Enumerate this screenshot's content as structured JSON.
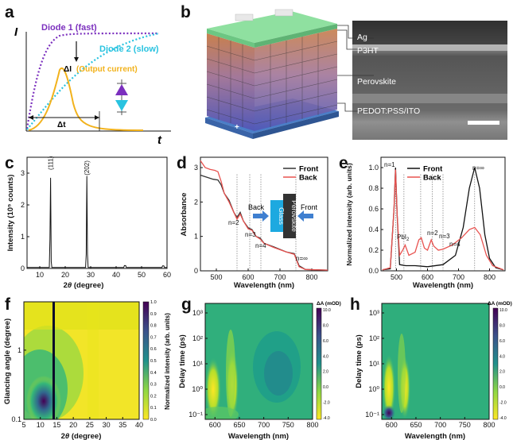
{
  "panels": {
    "a": {
      "label": "a",
      "y_axis": "I",
      "x_axis": "t",
      "diode1": "Diode 1 (fast)",
      "diode2": "Diode 2 (slow)",
      "delta_i": "ΔI",
      "output": "(Output current)",
      "delta_t": "Δt",
      "colors": {
        "diode1": "#7b2fbe",
        "diode2": "#29c3e0",
        "output": "#f2b21c"
      }
    },
    "b": {
      "label": "b",
      "layers": [
        "Ag",
        "P3HT",
        "Perovskite",
        "PEDOT:PSS/ITO"
      ]
    },
    "c": {
      "label": "c",
      "peak1": "(111)",
      "peak2": "(202)"
    },
    "d": {
      "label": "d",
      "n2": "n=2",
      "n3": "n=3",
      "n4": "n=4",
      "ninf": "n=∞",
      "inset_back": "Back",
      "inset_front": "Front",
      "inset_glass": "Glass",
      "inset_perov": "Perovskite"
    },
    "e": {
      "label": "e",
      "n1": "n=1",
      "pbi": "PbI",
      "pbi_sub": "2",
      "n2": "n=2",
      "n3": "n=3",
      "n4": "n=4",
      "ninf": "n=∞"
    },
    "f": {
      "label": "f",
      "cbar_label": "Normalized intensity (arb. units)"
    },
    "g": {
      "label": "g",
      "cbar_title": "ΔA (mOD)"
    },
    "h": {
      "label": "h",
      "cbar_title": "ΔA (mOD)"
    }
  },
  "chart_data": [
    {
      "type": "line",
      "id": "c",
      "xlabel_pre": "2",
      "xlabel_theta": "θ",
      "xlabel_post": " (degree)",
      "ylabel": "Intensity (10⁵ counts)",
      "xlim": [
        5,
        60
      ],
      "ylim": [
        0,
        3.5
      ],
      "xticks": [
        10,
        20,
        30,
        40,
        50,
        60
      ],
      "yticks": [
        0,
        1,
        2,
        3
      ],
      "peaks": [
        {
          "x": 14.2,
          "y": 3.05
        },
        {
          "x": 28.5,
          "y": 2.88
        }
      ],
      "baseline": 0.03
    },
    {
      "type": "line",
      "id": "d",
      "xlabel": "Wavelength (nm)",
      "ylabel": "Absorbance",
      "xlim": [
        450,
        850
      ],
      "ylim": [
        0,
        3.3
      ],
      "xticks": [
        500,
        600,
        700,
        800
      ],
      "yticks": [
        0,
        1,
        2,
        3
      ],
      "series": [
        {
          "name": "Front",
          "color": "#333333",
          "points": [
            [
              450,
              2.78
            ],
            [
              470,
              2.72
            ],
            [
              490,
              2.66
            ],
            [
              505,
              2.64
            ],
            [
              515,
              2.5
            ],
            [
              525,
              2.25
            ],
            [
              540,
              2.05
            ],
            [
              555,
              1.7
            ],
            [
              565,
              1.55
            ],
            [
              575,
              1.7
            ],
            [
              585,
              1.45
            ],
            [
              600,
              1.25
            ],
            [
              612,
              1.2
            ],
            [
              625,
              1.0
            ],
            [
              638,
              0.95
            ],
            [
              650,
              0.8
            ],
            [
              680,
              0.7
            ],
            [
              720,
              0.55
            ],
            [
              745,
              0.5
            ],
            [
              760,
              0.15
            ],
            [
              780,
              0.04
            ],
            [
              850,
              0.02
            ]
          ]
        },
        {
          "name": "Back",
          "color": "#e8524f",
          "points": [
            [
              450,
              3.2
            ],
            [
              465,
              3.0
            ],
            [
              480,
              2.95
            ],
            [
              495,
              2.92
            ],
            [
              505,
              2.88
            ],
            [
              515,
              2.6
            ],
            [
              525,
              2.25
            ],
            [
              540,
              2.0
            ],
            [
              555,
              1.7
            ],
            [
              565,
              1.5
            ],
            [
              575,
              1.65
            ],
            [
              585,
              1.45
            ],
            [
              600,
              1.22
            ],
            [
              612,
              1.18
            ],
            [
              625,
              1.0
            ],
            [
              638,
              0.92
            ],
            [
              650,
              0.8
            ],
            [
              680,
              0.68
            ],
            [
              720,
              0.55
            ],
            [
              745,
              0.48
            ],
            [
              760,
              0.12
            ],
            [
              780,
              0.04
            ],
            [
              850,
              0.02
            ]
          ]
        }
      ],
      "markers": [
        565,
        605,
        640,
        750
      ]
    },
    {
      "type": "line",
      "id": "e",
      "xlabel": "Wavelength (nm)",
      "ylabel": "Normalized intensity (arb. units)",
      "xlim": [
        450,
        850
      ],
      "ylim": [
        0,
        1.1
      ],
      "xticks": [
        500,
        600,
        700,
        800
      ],
      "yticks": [
        0.0,
        0.2,
        0.4,
        0.6,
        0.8,
        1.0
      ],
      "series": [
        {
          "name": "Front",
          "color": "#111111",
          "points": [
            [
              455,
              0.01
            ],
            [
              480,
              0.02
            ],
            [
              492,
              0.6
            ],
            [
              497,
              1.0
            ],
            [
              502,
              0.55
            ],
            [
              510,
              0.06
            ],
            [
              530,
              0.05
            ],
            [
              560,
              0.05
            ],
            [
              600,
              0.04
            ],
            [
              650,
              0.06
            ],
            [
              690,
              0.15
            ],
            [
              715,
              0.42
            ],
            [
              735,
              0.8
            ],
            [
              752,
              1.0
            ],
            [
              768,
              0.8
            ],
            [
              785,
              0.35
            ],
            [
              800,
              0.12
            ],
            [
              820,
              0.03
            ],
            [
              845,
              0.01
            ]
          ]
        },
        {
          "name": "Back",
          "color": "#e8524f",
          "points": [
            [
              455,
              0.01
            ],
            [
              480,
              0.03
            ],
            [
              492,
              0.6
            ],
            [
              497,
              0.98
            ],
            [
              502,
              0.55
            ],
            [
              510,
              0.15
            ],
            [
              520,
              0.2
            ],
            [
              528,
              0.25
            ],
            [
              540,
              0.15
            ],
            [
              560,
              0.18
            ],
            [
              572,
              0.3
            ],
            [
              580,
              0.32
            ],
            [
              590,
              0.22
            ],
            [
              600,
              0.2
            ],
            [
              612,
              0.3
            ],
            [
              620,
              0.24
            ],
            [
              635,
              0.2
            ],
            [
              650,
              0.21
            ],
            [
              680,
              0.25
            ],
            [
              710,
              0.32
            ],
            [
              735,
              0.4
            ],
            [
              752,
              0.42
            ],
            [
              770,
              0.35
            ],
            [
              790,
              0.15
            ],
            [
              810,
              0.05
            ],
            [
              845,
              0.01
            ]
          ]
        }
      ],
      "markers": [
        497,
        524,
        578,
        615,
        650,
        752
      ]
    },
    {
      "type": "heatmap",
      "id": "f",
      "xlabel_pre": "2",
      "xlabel_theta": "θ",
      "xlabel_post": " (degree)",
      "ylabel": "Glancing angle (degree)",
      "xlim": [
        5,
        40
      ],
      "ylim_log": [
        0.1,
        5
      ],
      "xticks": [
        5,
        10,
        15,
        20,
        25,
        30,
        35,
        40
      ],
      "yticks": [
        "0.1",
        "1"
      ],
      "cbar_ticks": [
        "0.0",
        "0.1",
        "0.2",
        "0.3",
        "0.4",
        "0.5",
        "0.6",
        "0.7",
        "0.8",
        "0.9",
        "1.0"
      ]
    },
    {
      "type": "heatmap",
      "id": "g",
      "xlabel": "Wavelength (nm)",
      "ylabel": "Delay time (ps)",
      "xlim": [
        580,
        800
      ],
      "xticks": [
        600,
        650,
        700,
        750,
        800
      ],
      "yticks": [
        "10⁻¹",
        "10⁰",
        "10¹",
        "10²",
        "10³"
      ],
      "cbar_ticks": [
        "10.0",
        "8.0",
        "6.0",
        "4.0",
        "2.0",
        "0.0",
        "-2.0",
        "-4.0"
      ]
    },
    {
      "type": "heatmap",
      "id": "h",
      "xlabel": "Wavelength (nm)",
      "ylabel": "Delay time (ps)",
      "xlim": [
        580,
        800
      ],
      "xticks": [
        600,
        650,
        700,
        750,
        800
      ],
      "yticks": [
        "10⁻¹",
        "10⁰",
        "10¹",
        "10²",
        "10³"
      ],
      "cbar_ticks": [
        "10.0",
        "8.0",
        "6.0",
        "4.0",
        "2.0",
        "0.0",
        "-2.0",
        "-4.0"
      ]
    }
  ]
}
